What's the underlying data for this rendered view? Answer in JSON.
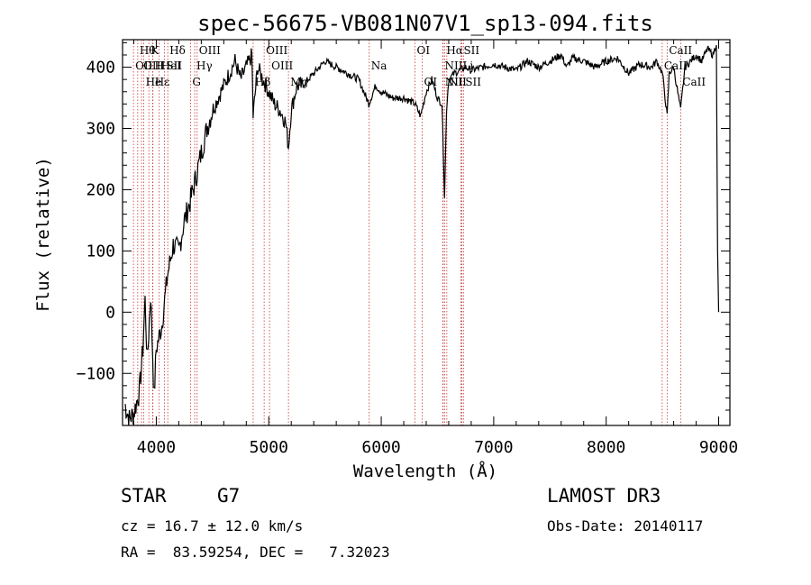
{
  "chart_data": {
    "type": "line",
    "title": "spec-56675-VB081N07V1_sp13-094.fits",
    "xlabel": "Wavelength (Å)",
    "ylabel": "Flux (relative)",
    "xlim": [
      3700,
      9100
    ],
    "ylim": [
      -185,
      445
    ],
    "xticks": [
      4000,
      5000,
      6000,
      7000,
      8000,
      9000
    ],
    "yticks": [
      -100,
      0,
      100,
      200,
      300,
      400
    ],
    "series": [
      {
        "name": "flux",
        "x": [
          3720,
          3760,
          3800,
          3850,
          3880,
          3900,
          3920,
          3950,
          3980,
          4000,
          4050,
          4100,
          4150,
          4200,
          4250,
          4300,
          4340,
          4400,
          4450,
          4500,
          4550,
          4600,
          4650,
          4700,
          4750,
          4800,
          4850,
          4861,
          4900,
          4950,
          5000,
          5050,
          5100,
          5150,
          5175,
          5200,
          5250,
          5300,
          5400,
          5500,
          5600,
          5700,
          5800,
          5890,
          5950,
          6000,
          6100,
          6200,
          6300,
          6350,
          6400,
          6450,
          6500,
          6540,
          6563,
          6580,
          6600,
          6650,
          6700,
          6750,
          6800,
          6900,
          7000,
          7100,
          7200,
          7300,
          7400,
          7500,
          7600,
          7650,
          7700,
          7800,
          7900,
          8000,
          8100,
          8200,
          8300,
          8400,
          8450,
          8500,
          8542,
          8560,
          8600,
          8662,
          8700,
          8800,
          8850,
          8900,
          8950,
          8980,
          8990,
          9000
        ],
        "y": [
          -150,
          -175,
          -165,
          -130,
          -60,
          20,
          -80,
          30,
          -140,
          -60,
          -20,
          60,
          110,
          100,
          150,
          180,
          210,
          260,
          300,
          330,
          350,
          370,
          390,
          410,
          380,
          400,
          420,
          320,
          400,
          380,
          360,
          340,
          330,
          310,
          270,
          330,
          370,
          370,
          390,
          410,
          400,
          390,
          380,
          340,
          370,
          360,
          350,
          350,
          340,
          320,
          360,
          380,
          350,
          340,
          190,
          330,
          380,
          390,
          395,
          400,
          395,
          400,
          405,
          400,
          395,
          410,
          400,
          410,
          420,
          400,
          415,
          410,
          400,
          410,
          415,
          390,
          405,
          400,
          410,
          390,
          320,
          390,
          400,
          330,
          400,
          420,
          410,
          430,
          420,
          440,
          100,
          0
        ]
      }
    ],
    "lines": [
      {
        "wl": 3797,
        "row": 1,
        "label": "OII"
      },
      {
        "wl": 3835,
        "row": 0,
        "label": "Hθ"
      },
      {
        "wl": 3869,
        "row": 1,
        "label": "OIII"
      },
      {
        "wl": 3889,
        "row": 2,
        "label": "He"
      },
      {
        "wl": 3934,
        "row": 0,
        "label": "K"
      },
      {
        "wl": 3968,
        "row": 1,
        "label": "H"
      },
      {
        "wl": 3970,
        "row": 2,
        "label": "Hε"
      },
      {
        "wl": 4026,
        "row": 1,
        "label": "HeI"
      },
      {
        "wl": 4072,
        "row": 1,
        "label": "SII"
      },
      {
        "wl": 4102,
        "row": 0,
        "label": "Hδ"
      },
      {
        "wl": 4304,
        "row": 2,
        "label": "G"
      },
      {
        "wl": 4341,
        "row": 1,
        "label": "Hγ"
      },
      {
        "wl": 4363,
        "row": 0,
        "label": "OIII"
      },
      {
        "wl": 4861,
        "row": 2,
        "label": "Hβ"
      },
      {
        "wl": 4959,
        "row": 0,
        "label": "OIII"
      },
      {
        "wl": 5007,
        "row": 1,
        "label": "OIII"
      },
      {
        "wl": 5175,
        "row": 2,
        "label": "Mg"
      },
      {
        "wl": 5893,
        "row": 1,
        "label": "Na"
      },
      {
        "wl": 6300,
        "row": 0,
        "label": "OI"
      },
      {
        "wl": 6364,
        "row": 2,
        "label": "OI"
      },
      {
        "wl": 6548,
        "row": 1,
        "label": "NII"
      },
      {
        "wl": 6550,
        "row": 2,
        "label": "NII"
      },
      {
        "wl": 6563,
        "row": 0,
        "label": "Hα"
      },
      {
        "wl": 6583,
        "row": 2,
        "label": "NII"
      },
      {
        "wl": 6708,
        "row": 1,
        "label": "Li"
      },
      {
        "wl": 6716,
        "row": 0,
        "label": "SII"
      },
      {
        "wl": 6731,
        "row": 2,
        "label": "SII"
      },
      {
        "wl": 8498,
        "row": 1,
        "label": "CaII"
      },
      {
        "wl": 8542,
        "row": 0,
        "label": "CaII"
      },
      {
        "wl": 8662,
        "row": 2,
        "label": "CaII"
      }
    ]
  },
  "info": {
    "class_label": "STAR",
    "subclass": "G7",
    "survey": "LAMOST DR3",
    "cz": "cz = 16.7 ± 12.0 km/s",
    "obs_date": "Obs-Date: 20140117",
    "coords": "RA =  83.59254, DEC =   7.32023"
  }
}
